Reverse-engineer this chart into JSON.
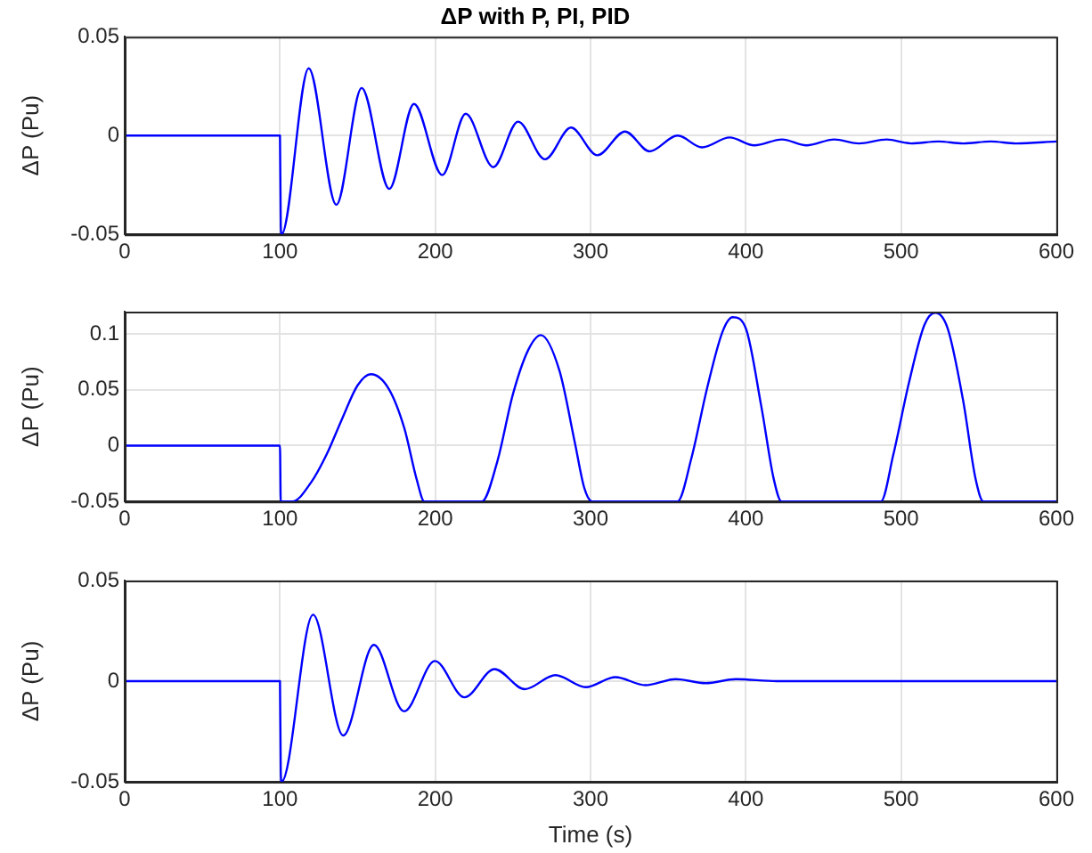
{
  "chart_data": [
    {
      "type": "line",
      "title": "ΔP with P, PI, PID",
      "ylabel": "ΔP (Pu)",
      "xlim": [
        0,
        600
      ],
      "xticks": [
        0,
        100,
        200,
        300,
        400,
        500,
        600
      ],
      "ylim": [
        -0.05,
        0.05
      ],
      "yticks": [
        -0.05,
        0,
        0.05
      ],
      "grid": true,
      "legend": false,
      "marker": "none",
      "line_style": "solid",
      "series": [
        {
          "color": "#0000ff",
          "x": [
            0,
            100,
            100.5,
            101,
            118.5,
            136.3,
            152.6,
            170.4,
            186.3,
            204.5,
            219.6,
            237.4,
            253.3,
            270.7,
            287.4,
            304.4,
            322.2,
            338,
            356,
            371.8,
            389.6,
            405.5,
            423.3,
            439,
            457,
            472.8,
            490.7,
            506.5,
            524,
            540,
            557.8,
            574,
            600
          ],
          "values": [
            0,
            0,
            -0.045,
            -0.05,
            0.034,
            -0.035,
            0.024,
            -0.027,
            0.016,
            -0.02,
            0.011,
            -0.016,
            0.007,
            -0.012,
            0.004,
            -0.01,
            0.002,
            -0.008,
            0,
            -0.006,
            -0.001,
            -0.005,
            -0.002,
            -0.005,
            -0.002,
            -0.004,
            -0.002,
            -0.004,
            -0.003,
            -0.004,
            -0.003,
            -0.004,
            -0.003
          ]
        }
      ]
    },
    {
      "type": "line",
      "ylabel": "ΔP (Pu)",
      "xlim": [
        0,
        600
      ],
      "xticks": [
        0,
        100,
        200,
        300,
        400,
        500,
        600
      ],
      "ylim": [
        -0.05,
        0.12
      ],
      "yticks": [
        -0.05,
        0,
        0.05,
        0.1
      ],
      "grid": true,
      "legend": false,
      "marker": "none",
      "line_style": "solid",
      "series": [
        {
          "color": "#0000ff",
          "x": [
            0,
            100,
            100.5,
            108,
            120,
            130,
            140,
            150,
            158.5,
            170,
            180,
            188,
            193,
            230,
            240,
            250,
            260,
            268,
            280,
            290,
            296,
            301,
            356,
            365,
            375,
            385,
            391.5,
            400,
            410,
            418,
            423,
            487,
            495,
            505,
            515,
            522,
            530,
            540,
            548,
            553,
            600
          ],
          "values": [
            0,
            0,
            -0.05,
            -0.05,
            -0.033,
            -0.008,
            0.024,
            0.054,
            0.064,
            0.051,
            0.016,
            -0.03,
            -0.05,
            -0.05,
            -0.014,
            0.046,
            0.086,
            0.099,
            0.067,
            0.002,
            -0.038,
            -0.05,
            -0.05,
            -0.011,
            0.051,
            0.102,
            0.115,
            0.105,
            0.035,
            -0.03,
            -0.05,
            -0.05,
            -0.008,
            0.056,
            0.108,
            0.119,
            0.105,
            0.04,
            -0.03,
            -0.05,
            -0.05
          ]
        }
      ]
    },
    {
      "type": "line",
      "xlabel": "Time (s)",
      "ylabel": "ΔP (Pu)",
      "xlim": [
        0,
        600
      ],
      "xticks": [
        0,
        100,
        200,
        300,
        400,
        500,
        600
      ],
      "ylim": [
        -0.05,
        0.05
      ],
      "yticks": [
        -0.05,
        0,
        0.05
      ],
      "grid": true,
      "legend": false,
      "marker": "none",
      "line_style": "solid",
      "series": [
        {
          "color": "#0000ff",
          "x": [
            0,
            100,
            100.5,
            101,
            121.3,
            140.7,
            160.5,
            179.9,
            199.8,
            218.8,
            238.2,
            257.6,
            277.4,
            296.9,
            316,
            335.3,
            354.8,
            374.2,
            393.6,
            420,
            600
          ],
          "values": [
            0,
            0,
            -0.045,
            -0.05,
            0.033,
            -0.027,
            0.018,
            -0.015,
            0.01,
            -0.008,
            0.006,
            -0.004,
            0.003,
            -0.003,
            0.002,
            -0.002,
            0.001,
            -0.001,
            0.001,
            0,
            0
          ]
        }
      ]
    }
  ]
}
